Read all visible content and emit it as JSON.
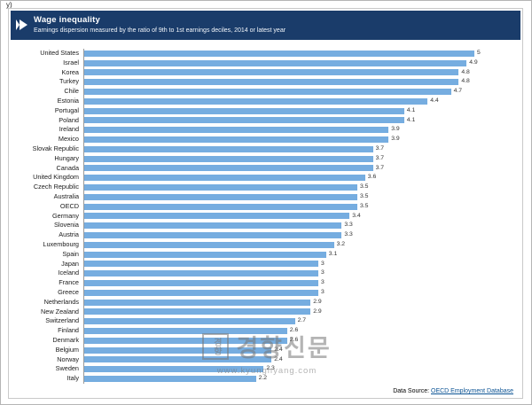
{
  "page": {
    "corner_text": "y)"
  },
  "header": {
    "title": "Wage inequality",
    "subtitle": "Earnings dispersion measured by the ratio of 9th to 1st earnings deciles, 2014 or latest year"
  },
  "chart_data": {
    "type": "bar",
    "orientation": "horizontal",
    "title": "Wage inequality",
    "subtitle": "Earnings dispersion measured by the ratio of 9th to 1st earnings deciles, 2014 or latest year",
    "categories": [
      "United States",
      "Israel",
      "Korea",
      "Turkey",
      "Chile",
      "Estonia",
      "Portugal",
      "Poland",
      "Ireland",
      "Mexico",
      "Slovak Republic",
      "Hungary",
      "Canada",
      "United Kingdom",
      "Czech Republic",
      "Australia",
      "OECD",
      "Germany",
      "Slovenia",
      "Austria",
      "Luxembourg",
      "Spain",
      "Japan",
      "Iceland",
      "France",
      "Greece",
      "Netherlands",
      "New Zealand",
      "Switzerland",
      "Finland",
      "Denmark",
      "Belgium",
      "Norway",
      "Sweden",
      "Italy"
    ],
    "values": [
      5,
      4.9,
      4.8,
      4.8,
      4.7,
      4.4,
      4.1,
      4.1,
      3.9,
      3.9,
      3.7,
      3.7,
      3.7,
      3.6,
      3.5,
      3.5,
      3.5,
      3.4,
      3.3,
      3.3,
      3.2,
      3.1,
      3,
      3,
      3,
      3,
      2.9,
      2.9,
      2.7,
      2.6,
      2.6,
      2.4,
      2.4,
      2.3,
      2.2
    ],
    "value_labels": [
      "5",
      "4.9",
      "4.8",
      "4.8",
      "4.7",
      "4.4",
      "4.1",
      "4.1",
      "3.9",
      "3.9",
      "3.7",
      "3.7",
      "3.7",
      "3.6",
      "3.5",
      "3.5",
      "3.5",
      "3.4",
      "3.3",
      "3.3",
      "3.2",
      "3.1",
      "3",
      "3",
      "3",
      "3",
      "2.9",
      "2.9",
      "2.7",
      "2.6",
      "2.6",
      "2.4",
      "2.4",
      "2.3",
      "2.2"
    ],
    "xlim": [
      0,
      5.2
    ],
    "grid": false,
    "legend": "none"
  },
  "footer": {
    "data_source_prefix": "Data Source: ",
    "data_source_link": "OECD Employment Database"
  },
  "watermark": {
    "seal_text": "경향",
    "name": "경향신문",
    "url": "www.kyunghyang.com"
  },
  "colors": {
    "header_bg": "#1a3c6a",
    "bar": "#76ade0",
    "link": "#0b5394"
  }
}
